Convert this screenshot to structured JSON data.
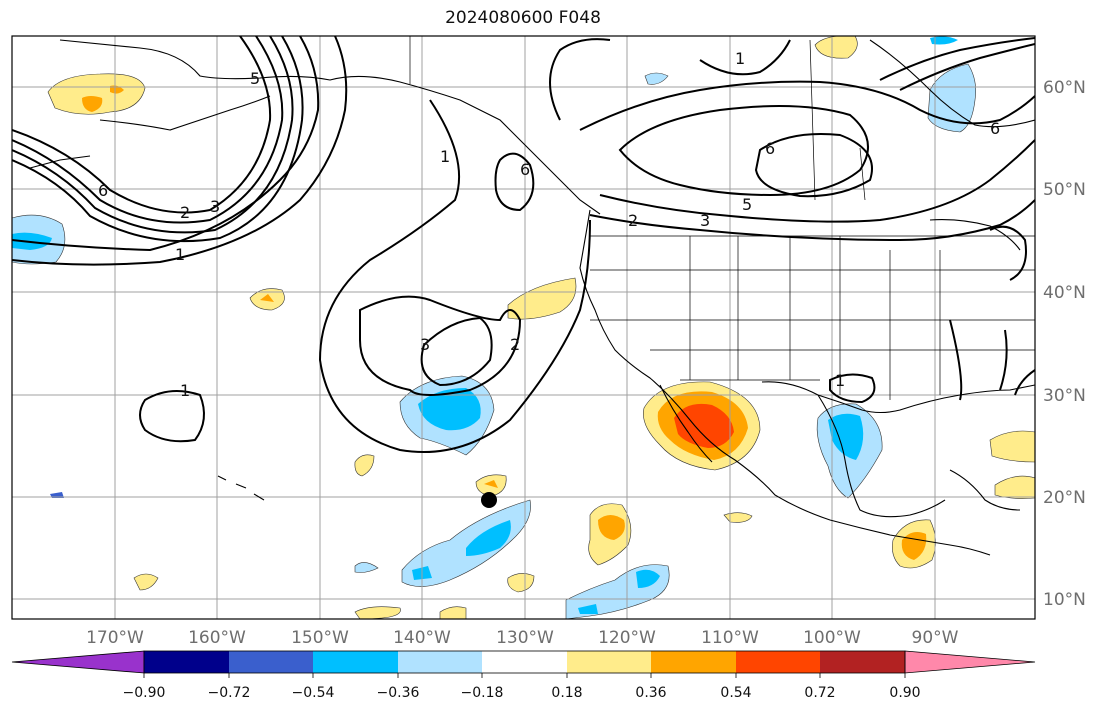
{
  "title": "2024080600 F048",
  "lon_labels": [
    "170°W",
    "160°W",
    "150°W",
    "140°W",
    "130°W",
    "120°W",
    "110°W",
    "100°W",
    "90°W"
  ],
  "lat_labels": [
    "60°N",
    "50°N",
    "40°N",
    "30°N",
    "20°N",
    "10°N"
  ],
  "colorbar": {
    "tick_labels": [
      "−0.90",
      "−0.72",
      "−0.54",
      "−0.36",
      "−0.18",
      "0.18",
      "0.36",
      "0.54",
      "0.72",
      "0.90"
    ],
    "colors": [
      "#9932cc",
      "#00008b",
      "#3a5fcd",
      "#00bfff",
      "#b0e2ff",
      "#ffffff",
      "#ffec8b",
      "#ffa500",
      "#ff4500",
      "#b22222",
      "#ff88aa"
    ]
  },
  "contour_labels": [
    "1",
    "2",
    "3",
    "5",
    "6",
    "1",
    "2",
    "3",
    "6",
    "5",
    "6",
    "1",
    "2",
    "3",
    "1",
    "1",
    "6"
  ],
  "marker": {
    "name": "storm-position",
    "color": "#000000"
  }
}
